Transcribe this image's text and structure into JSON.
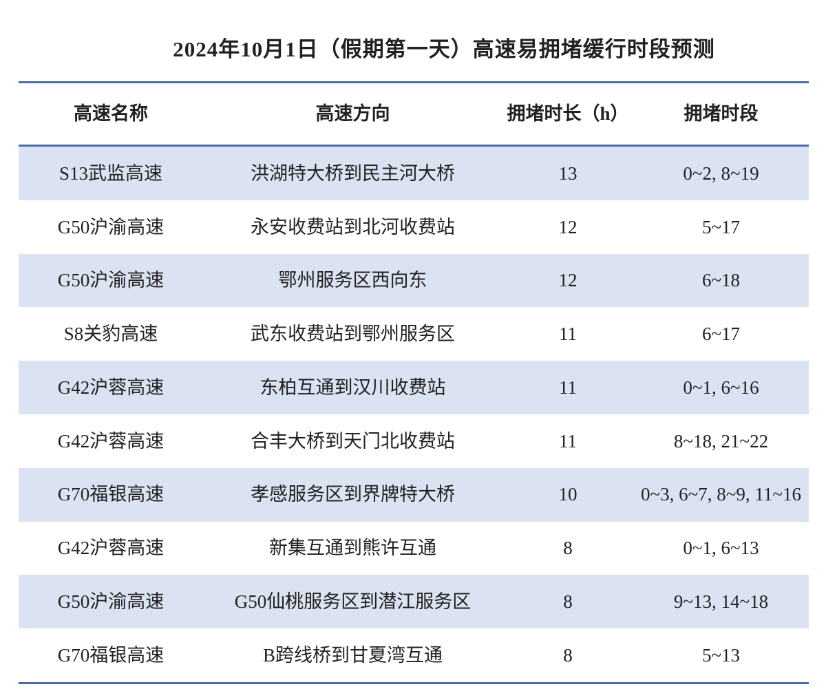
{
  "page": {
    "title": "2024年10月1日（假期第一天）高速易拥堵缓行时段预测"
  },
  "chart_data": {
    "type": "table",
    "title": "2024年10月1日（假期第一天）高速易拥堵缓行时段预测",
    "columns": [
      "高速名称",
      "高速方向",
      "拥堵时长（h）",
      "拥堵时段"
    ],
    "rows": [
      {
        "name": "S13武监高速",
        "direction": "洪湖特大桥到民主河大桥",
        "duration": 13,
        "period": "0~2, 8~19"
      },
      {
        "name": "G50沪渝高速",
        "direction": "永安收费站到北河收费站",
        "duration": 12,
        "period": "5~17"
      },
      {
        "name": "G50沪渝高速",
        "direction": "鄂州服务区西向东",
        "duration": 12,
        "period": "6~18"
      },
      {
        "name": "S8关豹高速",
        "direction": "武东收费站到鄂州服务区",
        "duration": 11,
        "period": "6~17"
      },
      {
        "name": "G42沪蓉高速",
        "direction": "东柏互通到汉川收费站",
        "duration": 11,
        "period": "0~1, 6~16"
      },
      {
        "name": "G42沪蓉高速",
        "direction": "合丰大桥到天门北收费站",
        "duration": 11,
        "period": "8~18, 21~22"
      },
      {
        "name": "G70福银高速",
        "direction": "孝感服务区到界牌特大桥",
        "duration": 10,
        "period": "0~3, 6~7, 8~9, 11~16"
      },
      {
        "name": "G42沪蓉高速",
        "direction": "新集互通到熊许互通",
        "duration": 8,
        "period": "0~1, 6~13"
      },
      {
        "name": "G50沪渝高速",
        "direction": "G50仙桃服务区到潜江服务区",
        "duration": 8,
        "period": "9~13, 14~18"
      },
      {
        "name": "G70福银高速",
        "direction": "B跨线桥到甘夏湾互通",
        "duration": 8,
        "period": "5~13"
      }
    ]
  },
  "colors": {
    "accent_line": "#4C6DA4",
    "row_shade": "#DBE3F2",
    "text": "#212121",
    "background": "#FFFFFF"
  }
}
